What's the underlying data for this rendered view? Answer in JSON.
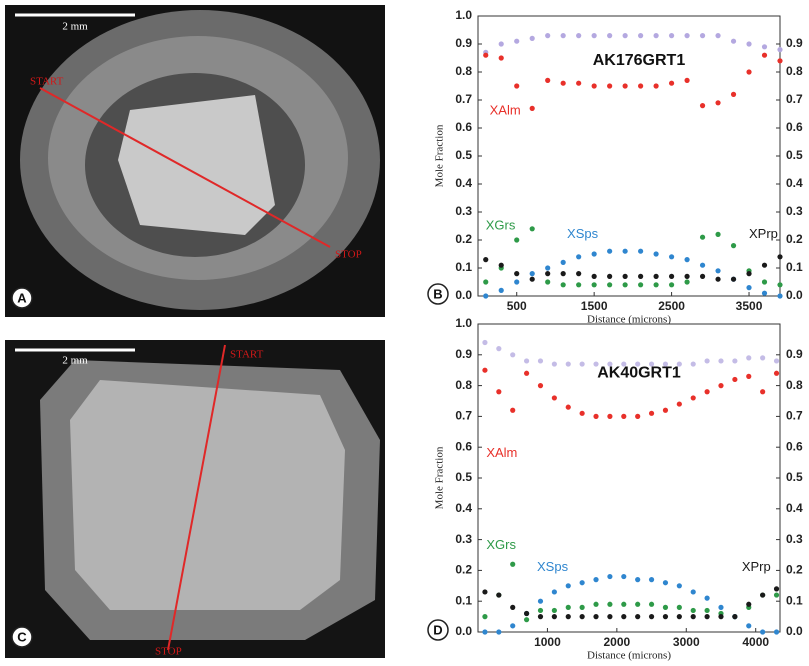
{
  "images": [
    {
      "panel": "A",
      "scale": "2 mm",
      "start": "START",
      "stop": "STOP"
    },
    {
      "panel": "C",
      "scale": "2 mm",
      "start": "START",
      "stop": "STOP"
    }
  ],
  "chart_data": [
    {
      "type": "scatter",
      "panel": "B",
      "title": "AK176GRT1",
      "xlabel": "Distance (microns)",
      "ylabel": "Mole Fraction",
      "xlim": [
        0,
        3900
      ],
      "xticks": [
        500,
        1500,
        2500,
        3500
      ],
      "ylim": [
        0,
        1
      ],
      "yticks": [
        {
          "value": 0,
          "label": "0.0"
        },
        0.1,
        0.2,
        0.3,
        0.4,
        0.5,
        0.6,
        0.7,
        0.8,
        0.9,
        {
          "value": 1,
          "label": "1.0"
        }
      ],
      "y2lim": [
        0,
        1
      ],
      "y2ticks": [
        {
          "value": 0,
          "label": "0.0"
        },
        0.1,
        0.2,
        0.3,
        0.4,
        0.5,
        0.6,
        0.7,
        0.8,
        0.9
      ],
      "x": [
        100,
        300,
        500,
        700,
        900,
        1100,
        1300,
        1500,
        1700,
        1900,
        2100,
        2300,
        2500,
        2700,
        2900,
        3100,
        3300,
        3500,
        3700,
        3900
      ],
      "series": [
        {
          "color": "#b4a8e0",
          "values": [
            0.87,
            0.9,
            0.91,
            0.92,
            0.93,
            0.93,
            0.93,
            0.93,
            0.93,
            0.93,
            0.93,
            0.93,
            0.93,
            0.93,
            0.93,
            0.93,
            0.91,
            0.9,
            0.89,
            0.88
          ]
        },
        {
          "name": "XAlm",
          "color": "#e8302a",
          "values": [
            0.86,
            0.85,
            0.75,
            0.67,
            0.77,
            0.76,
            0.76,
            0.75,
            0.75,
            0.75,
            0.75,
            0.75,
            0.76,
            0.77,
            0.68,
            0.69,
            0.72,
            0.8,
            0.86,
            0.84
          ]
        },
        {
          "name": "XGrs",
          "color": "#2e9a48",
          "values": [
            0.05,
            0.1,
            0.2,
            0.24,
            0.05,
            0.04,
            0.04,
            0.04,
            0.04,
            0.04,
            0.04,
            0.04,
            0.04,
            0.05,
            0.21,
            0.22,
            0.18,
            0.09,
            0.05,
            0.04
          ]
        },
        {
          "name": "XSps",
          "color": "#2f86cf",
          "values": [
            0,
            0.02,
            0.05,
            0.08,
            0.1,
            0.12,
            0.14,
            0.15,
            0.16,
            0.16,
            0.16,
            0.15,
            0.14,
            0.13,
            0.11,
            0.09,
            0.06,
            0.03,
            0.01,
            0
          ]
        },
        {
          "name": "XPrp",
          "color": "#1a1a1a",
          "values": [
            0.13,
            0.11,
            0.08,
            0.06,
            0.08,
            0.08,
            0.08,
            0.07,
            0.07,
            0.07,
            0.07,
            0.07,
            0.07,
            0.07,
            0.07,
            0.06,
            0.06,
            0.08,
            0.11,
            0.14
          ]
        }
      ]
    },
    {
      "type": "scatter",
      "panel": "D",
      "title": "AK40GRT1",
      "xlabel": "Distance (microns)",
      "ylabel": "Mole Fraction",
      "xlim": [
        0,
        4350
      ],
      "xticks": [
        1000,
        2000,
        3000,
        4000
      ],
      "ylim": [
        0,
        1
      ],
      "yticks": [
        {
          "value": 0,
          "label": "0.0"
        },
        0.1,
        0.2,
        0.3,
        0.4,
        0.5,
        0.6,
        0.7,
        0.8,
        0.9,
        {
          "value": 1,
          "label": "1.0"
        }
      ],
      "y2lim": [
        0,
        1
      ],
      "y2ticks": [
        {
          "value": 0,
          "label": "0.0"
        },
        0.1,
        0.2,
        0.3,
        0.4,
        0.5,
        0.6,
        0.7,
        0.8,
        0.9
      ],
      "x": [
        100,
        300,
        500,
        700,
        900,
        1100,
        1300,
        1500,
        1700,
        1900,
        2100,
        2300,
        2500,
        2700,
        2900,
        3100,
        3300,
        3500,
        3700,
        3900,
        4100,
        4300
      ],
      "series": [
        {
          "color": "#c4bce6",
          "values": [
            0.94,
            0.92,
            0.9,
            0.88,
            0.88,
            0.87,
            0.87,
            0.87,
            0.87,
            0.87,
            0.87,
            0.87,
            0.87,
            0.87,
            0.87,
            0.87,
            0.88,
            0.88,
            0.88,
            0.89,
            0.89,
            0.88
          ]
        },
        {
          "name": "XAlm",
          "color": "#e8302a",
          "values": [
            0.85,
            0.78,
            0.72,
            0.84,
            0.8,
            0.76,
            0.73,
            0.71,
            0.7,
            0.7,
            0.7,
            0.7,
            0.71,
            0.72,
            0.74,
            0.76,
            0.78,
            0.8,
            0.82,
            0.83,
            0.78,
            0.84
          ]
        },
        {
          "name": "XGrs",
          "color": "#2e9a48",
          "values": [
            0.05,
            0.12,
            0.22,
            0.04,
            0.07,
            0.07,
            0.08,
            0.08,
            0.09,
            0.09,
            0.09,
            0.09,
            0.09,
            0.08,
            0.08,
            0.07,
            0.07,
            0.06,
            0.05,
            0.08,
            0.12,
            0.12
          ]
        },
        {
          "name": "XSps",
          "color": "#2f86cf",
          "values": [
            0,
            0,
            0.02,
            0.06,
            0.1,
            0.13,
            0.15,
            0.16,
            0.17,
            0.18,
            0.18,
            0.17,
            0.17,
            0.16,
            0.15,
            0.13,
            0.11,
            0.08,
            0.05,
            0.02,
            0,
            0
          ]
        },
        {
          "name": "XPrp",
          "color": "#1a1a1a",
          "values": [
            0.13,
            0.12,
            0.08,
            0.06,
            0.05,
            0.05,
            0.05,
            0.05,
            0.05,
            0.05,
            0.05,
            0.05,
            0.05,
            0.05,
            0.05,
            0.05,
            0.05,
            0.05,
            0.05,
            0.09,
            0.12,
            0.14
          ]
        }
      ]
    }
  ]
}
